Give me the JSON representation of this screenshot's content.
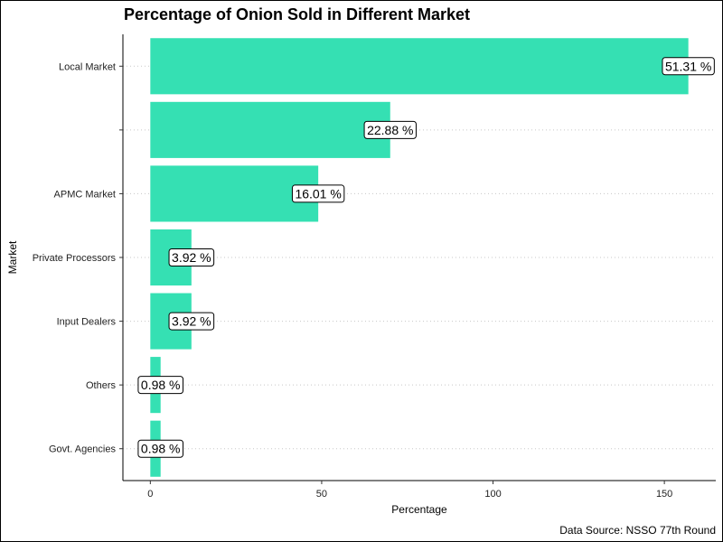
{
  "chart_data": {
    "type": "bar",
    "orientation": "horizontal",
    "title": "Percentage of Onion Sold in Different Market",
    "xlabel": "Percentage",
    "ylabel": "Market",
    "caption": "Data Source: NSSO 77th Round",
    "xlim": [
      -8,
      165
    ],
    "xticks": [
      0,
      50,
      100,
      150
    ],
    "grid": "horizontal dotted",
    "bar_color": "#35E0B3",
    "categories": [
      "Local Market",
      "",
      "APMC Market",
      "Private Processors",
      "Input Dealers",
      "Others",
      "Govt. Agencies"
    ],
    "values": [
      157,
      70,
      49,
      12,
      12,
      3,
      3
    ],
    "data_labels": [
      "51.31 %",
      "22.88 %",
      "16.01 %",
      "3.92 %",
      "3.92 %",
      "0.98 %",
      "0.98 %"
    ]
  }
}
